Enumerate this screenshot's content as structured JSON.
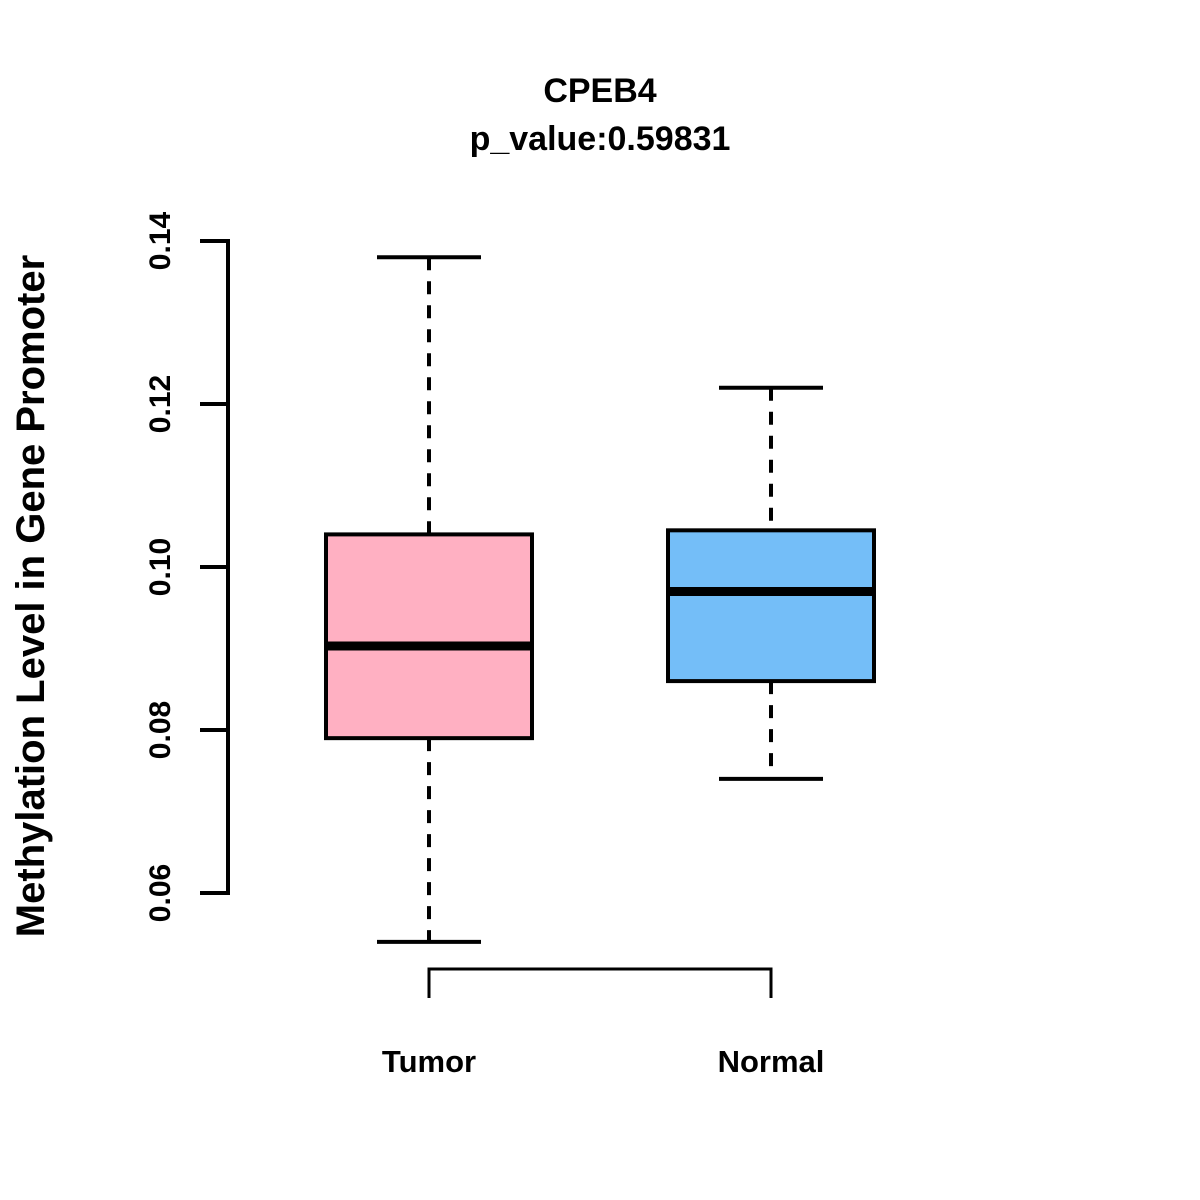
{
  "chart_data": {
    "type": "boxplot",
    "title": "CPEB4",
    "subtitle": "p_value:0.59831",
    "ylabel": "Methylation Level in Gene Promoter",
    "xlabel": "",
    "ylim": [
      0.06,
      0.14
    ],
    "ytick_labels": [
      "0.06",
      "0.08",
      "0.10",
      "0.12",
      "0.14"
    ],
    "ytick_values": [
      0.06,
      0.08,
      0.1,
      0.12,
      0.14
    ],
    "grid": "off",
    "legend": "none",
    "groups": [
      {
        "label": "Tumor",
        "fill_color": "#FFB0C2",
        "whisker_low": 0.054,
        "q1": 0.079,
        "median": 0.0903,
        "q3": 0.104,
        "whisker_high": 0.138
      },
      {
        "label": "Normal",
        "fill_color": "#74BEF8",
        "whisker_low": 0.074,
        "q1": 0.086,
        "median": 0.097,
        "q3": 0.1045,
        "whisker_high": 0.122
      }
    ],
    "stroke_color": "#000000",
    "background_color": "#FFFFFF"
  }
}
